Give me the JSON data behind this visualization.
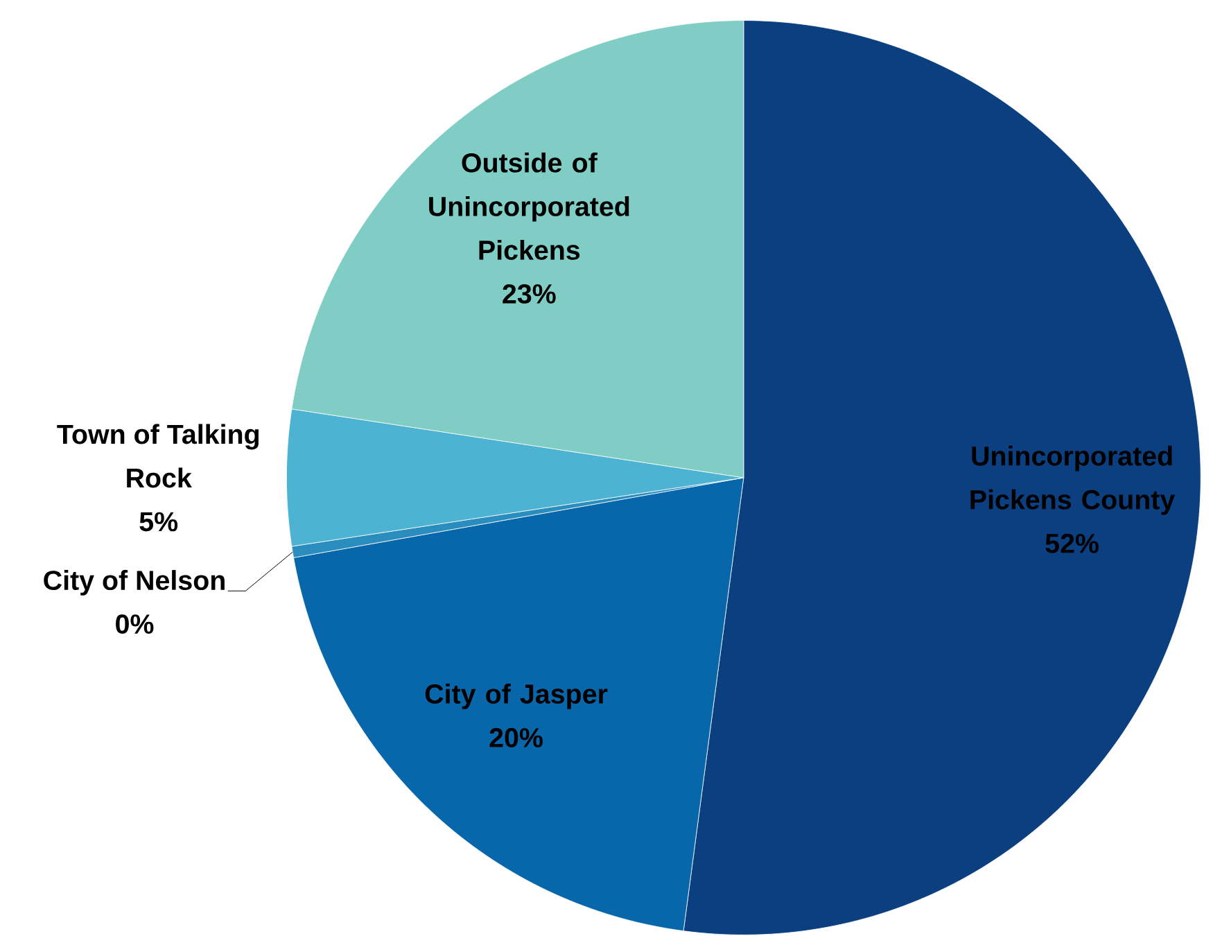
{
  "chart_data": {
    "type": "pie",
    "categories": [
      "Unincorporated Pickens County",
      "City of Jasper",
      "City of Nelson",
      "Town of Talking Rock",
      "Outside of Unincorporated Pickens"
    ],
    "values": [
      52.1,
      20.1,
      0.4,
      4.8,
      22.6
    ],
    "value_labels": [
      "52%",
      "20%",
      "0%",
      "5%",
      "23%"
    ],
    "colors": [
      "#0b3f80",
      "#0866aa",
      "#2b8cbe",
      "#4eb3d3",
      "#7fcdc5"
    ]
  }
}
